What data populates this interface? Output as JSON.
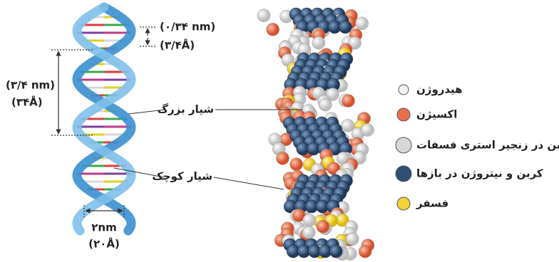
{
  "labels": {
    "pitch_small_nm": "(۰/۳۴ nm)",
    "pitch_small_a": "(۳/۴Å)",
    "turn_nm": "(۳/۴ nm)",
    "turn_a": "(۳۴Å)",
    "major_groove": "شیار بزرگ",
    "minor_groove": "شیار کوچک",
    "width_nm": "۲nm",
    "width_a": "(۲۰Å)"
  },
  "legend": [
    {
      "label": "هیدروژن",
      "color": "#f4f4f4"
    },
    {
      "label": "اکسیژن",
      "color": "#e8704e"
    },
    {
      "label": "کربن در زنجیر استری فسفات",
      "color": "#d8d8d8"
    },
    {
      "label": "کربن و نیتروژن در بازها",
      "color": "#2f4f73"
    },
    {
      "label": "فسفر",
      "color": "#f3d23a"
    }
  ]
}
